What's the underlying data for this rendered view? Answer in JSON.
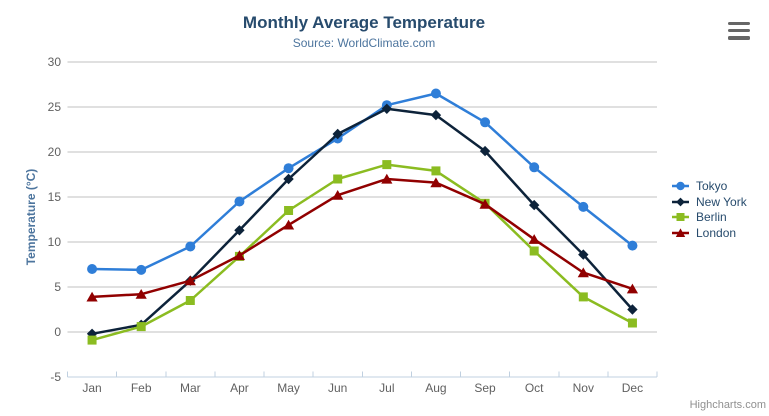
{
  "chart_data": {
    "type": "line",
    "title": "Monthly Average Temperature",
    "subtitle": "Source: WorldClimate.com",
    "xlabel": "",
    "ylabel": "Temperature (°C)",
    "ylim": [
      -5,
      30
    ],
    "yticks": [
      -5,
      0,
      5,
      10,
      15,
      20,
      25,
      30
    ],
    "grid": true,
    "legend_position": "right",
    "categories": [
      "Jan",
      "Feb",
      "Mar",
      "Apr",
      "May",
      "Jun",
      "Jul",
      "Aug",
      "Sep",
      "Oct",
      "Nov",
      "Dec"
    ],
    "series": [
      {
        "name": "Tokyo",
        "marker": "circle",
        "color": "#2f7ed8",
        "values": [
          7.0,
          6.9,
          9.5,
          14.5,
          18.2,
          21.5,
          25.2,
          26.5,
          23.3,
          18.3,
          13.9,
          9.6
        ]
      },
      {
        "name": "New York",
        "marker": "diamond",
        "color": "#0d233a",
        "values": [
          -0.2,
          0.8,
          5.7,
          11.3,
          17.0,
          22.0,
          24.8,
          24.1,
          20.1,
          14.1,
          8.6,
          2.5
        ]
      },
      {
        "name": "Berlin",
        "marker": "square",
        "color": "#8bbc21",
        "values": [
          -0.9,
          0.6,
          3.5,
          8.4,
          13.5,
          17.0,
          18.6,
          17.9,
          14.3,
          9.0,
          3.9,
          1.0
        ]
      },
      {
        "name": "London",
        "marker": "triangle",
        "color": "#910000",
        "values": [
          3.9,
          4.2,
          5.7,
          8.5,
          11.9,
          15.2,
          17.0,
          16.6,
          14.2,
          10.3,
          6.6,
          4.8
        ]
      }
    ],
    "colors": {
      "title": "#274b6d",
      "subtitle": "#4d759e",
      "axis_title": "#4d759e",
      "axis_label": "#606060",
      "grid_line": "#c0c0c0",
      "axis_line": "#c0d0e0",
      "legend_text": "#274b6d",
      "credit_text": "#909090",
      "menu_icon": "#666666"
    }
  },
  "export_menu": {
    "icon": "hamburger-menu-icon"
  },
  "credit": {
    "label": "Highcharts.com"
  }
}
